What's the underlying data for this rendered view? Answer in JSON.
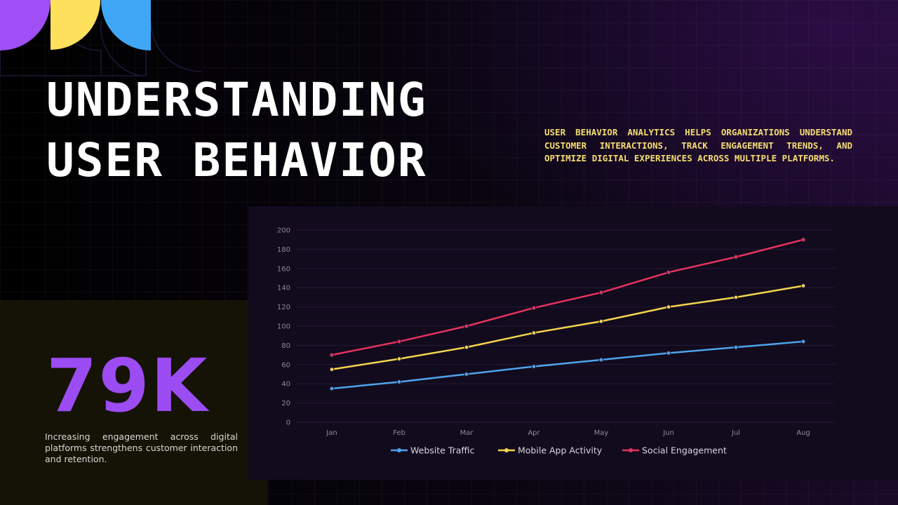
{
  "title": {
    "line1": "UNDERSTANDING",
    "line2": "USER BEHAVIOR"
  },
  "description": "User behavior analytics helps organizations understand customer interactions, track engagement trends, and optimize digital experiences across multiple platforms.",
  "stat": {
    "value": "79K",
    "caption": "Increasing engagement across digital platforms strengthens customer interaction and retention."
  },
  "colors": {
    "deco_purple": "#a04ef6",
    "deco_yellow": "#fde05c",
    "deco_blue": "#3fa6f5",
    "stat_purple": "#9b4cf2",
    "desc_yellow": "#f5dd70"
  },
  "chart_data": {
    "type": "line",
    "categories": [
      "Jan",
      "Feb",
      "Mar",
      "Apr",
      "May",
      "Jun",
      "Jul",
      "Aug"
    ],
    "ylim": [
      0,
      200
    ],
    "yticks": [
      0,
      20,
      40,
      60,
      80,
      100,
      120,
      140,
      160,
      180,
      200
    ],
    "grid": true,
    "legend_position": "bottom",
    "series": [
      {
        "name": "Website Traffic",
        "color": "#4ea3ea",
        "values": [
          35,
          42,
          50,
          58,
          65,
          72,
          78,
          84
        ]
      },
      {
        "name": "Mobile App Activity",
        "color": "#f3d44d",
        "values": [
          55,
          66,
          78,
          93,
          105,
          120,
          130,
          142
        ]
      },
      {
        "name": "Social Engagement",
        "color": "#e5335f",
        "values": [
          70,
          84,
          100,
          119,
          135,
          156,
          172,
          190
        ]
      }
    ]
  }
}
